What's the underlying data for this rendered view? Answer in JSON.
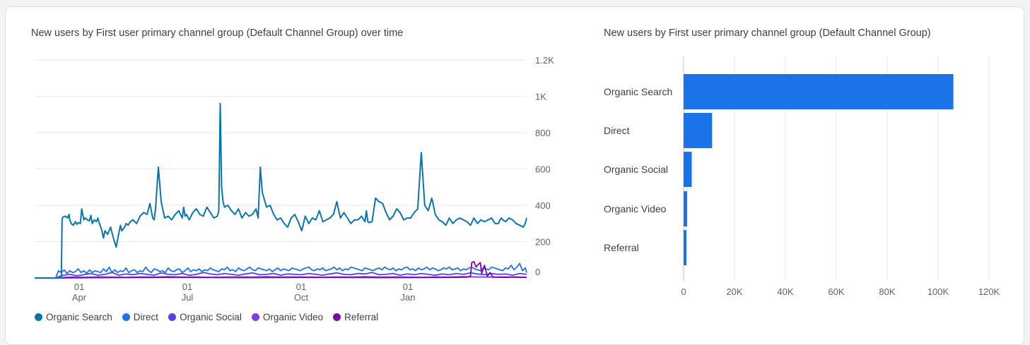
{
  "colors": {
    "organic_search": "#0a75ad",
    "direct": "#1a73e8",
    "organic_social": "#4c44e6",
    "organic_video": "#7e3ee0",
    "referral": "#7b0aa5",
    "grid": "#e8eaed",
    "axis": "#5f6368",
    "bar": "#1a73e8"
  },
  "chart_data": [
    {
      "type": "line",
      "title": "New users by First user primary channel group (Default Channel Group) over time",
      "ylim": [
        0,
        1200
      ],
      "y_ticks": [
        "1.2K",
        "1K",
        "800",
        "600",
        "400",
        "200",
        "0"
      ],
      "y_tick_values": [
        1200,
        1000,
        800,
        600,
        400,
        200,
        0
      ],
      "x_ticks": [
        {
          "top": "01",
          "bottom": "Apr"
        },
        {
          "top": "01",
          "bottom": "Jul"
        },
        {
          "top": "01",
          "bottom": "Oct"
        },
        {
          "top": "01",
          "bottom": "Jan"
        }
      ],
      "grid": true,
      "legend_position": "bottom-left",
      "legend": [
        "Organic Search",
        "Direct",
        "Organic Social",
        "Organic Video",
        "Referral"
      ],
      "series": [
        {
          "name": "Organic Search",
          "color_key": "organic_search",
          "x": [
            0,
            30,
            38,
            39,
            40,
            44,
            47,
            49,
            50,
            52,
            55,
            58,
            60,
            62,
            65,
            67,
            70,
            72,
            75,
            78,
            80,
            82,
            85,
            88,
            90,
            92,
            95,
            98,
            100,
            104,
            108,
            112,
            116,
            120,
            122,
            124,
            128,
            130,
            133,
            136,
            140,
            145,
            150,
            155,
            160,
            164,
            168,
            170,
            172,
            176,
            180,
            185,
            190,
            195,
            200,
            205,
            210,
            212,
            214,
            216,
            220,
            225,
            230,
            235,
            240,
            245,
            250,
            255,
            260,
            262,
            264,
            266,
            268,
            270,
            275,
            280,
            285,
            290,
            295,
            300,
            305,
            310,
            315,
            318,
            321,
            324,
            330,
            335,
            340,
            345,
            350,
            355,
            360,
            365,
            370,
            375,
            380,
            385,
            390,
            395,
            400,
            405,
            410,
            415,
            420,
            425,
            430,
            435,
            440,
            445,
            450,
            455,
            460,
            465,
            470,
            472,
            474,
            476,
            480,
            485,
            490,
            495,
            500,
            505,
            510,
            515,
            520,
            525,
            530,
            535,
            540,
            545,
            550,
            555,
            560,
            565,
            570,
            575,
            580,
            585,
            590,
            595,
            600,
            605,
            610,
            615,
            620,
            625,
            630,
            635,
            640,
            645,
            650,
            655,
            660,
            662,
            664,
            666,
            670,
            675,
            680,
            685,
            690,
            695,
            698,
            700
          ],
          "values": [
            0,
            0,
            0,
            320,
            335,
            340,
            330,
            350,
            320,
            300,
            290,
            310,
            295,
            305,
            300,
            380,
            320,
            330,
            320,
            315,
            345,
            300,
            320,
            310,
            330,
            300,
            270,
            220,
            260,
            240,
            280,
            220,
            170,
            250,
            290,
            260,
            280,
            300,
            290,
            310,
            320,
            300,
            340,
            360,
            350,
            410,
            330,
            320,
            380,
            610,
            420,
            330,
            340,
            320,
            350,
            370,
            330,
            390,
            340,
            350,
            320,
            360,
            380,
            350,
            340,
            390,
            360,
            330,
            340,
            370,
            960,
            500,
            420,
            390,
            400,
            370,
            350,
            380,
            330,
            360,
            340,
            350,
            380,
            330,
            610,
            470,
            390,
            400,
            350,
            320,
            330,
            300,
            280,
            330,
            350,
            310,
            260,
            340,
            300,
            330,
            320,
            370,
            310,
            320,
            330,
            350,
            420,
            330,
            360,
            330,
            300,
            320,
            320,
            340,
            310,
            370,
            310,
            305,
            310,
            440,
            420,
            410,
            360,
            320,
            340,
            380,
            360,
            320,
            330,
            330,
            360,
            380,
            690,
            400,
            370,
            440,
            350,
            320,
            310,
            290,
            330,
            300,
            320,
            330,
            320,
            310,
            290,
            330,
            300,
            320,
            310,
            320,
            330,
            300,
            300,
            320,
            330,
            320,
            310,
            330,
            320,
            300,
            290,
            280,
            300,
            330
          ],
          "_": null
        },
        {
          "name": "Direct",
          "color_key": "direct",
          "x": [
            0,
            30,
            34,
            38,
            42,
            46,
            50,
            54,
            58,
            62,
            66,
            70,
            74,
            78,
            82,
            86,
            90,
            94,
            98,
            102,
            106,
            110,
            114,
            118,
            122,
            126,
            130,
            134,
            138,
            142,
            146,
            150,
            154,
            158,
            162,
            166,
            170,
            174,
            178,
            182,
            186,
            190,
            194,
            198,
            202,
            206,
            210,
            214,
            218,
            222,
            226,
            230,
            234,
            238,
            242,
            246,
            250,
            254,
            258,
            262,
            266,
            270,
            274,
            278,
            282,
            286,
            290,
            294,
            298,
            302,
            306,
            310,
            314,
            318,
            322,
            326,
            330,
            334,
            338,
            342,
            346,
            350,
            354,
            358,
            362,
            366,
            370,
            374,
            378,
            382,
            386,
            390,
            394,
            398,
            402,
            406,
            410,
            414,
            418,
            422,
            426,
            430,
            434,
            438,
            442,
            446,
            450,
            454,
            458,
            462,
            466,
            470,
            474,
            478,
            482,
            486,
            490,
            494,
            498,
            502,
            506,
            510,
            514,
            518,
            522,
            526,
            530,
            534,
            538,
            542,
            546,
            550,
            554,
            558,
            562,
            566,
            570,
            574,
            578,
            582,
            586,
            590,
            594,
            598,
            602,
            606,
            610,
            614,
            618,
            622,
            626,
            630,
            634,
            638,
            642,
            646,
            650,
            654,
            658,
            662,
            666,
            670,
            674,
            678,
            682,
            686,
            690,
            694,
            698,
            700
          ],
          "values": [
            0,
            0,
            40,
            30,
            45,
            25,
            40,
            30,
            35,
            50,
            30,
            40,
            25,
            45,
            30,
            40,
            35,
            30,
            50,
            35,
            60,
            30,
            45,
            30,
            40,
            35,
            55,
            30,
            40,
            45,
            30,
            40,
            35,
            60,
            40,
            30,
            50,
            45,
            35,
            40,
            30,
            55,
            40,
            35,
            45,
            50,
            30,
            40,
            55,
            35,
            45,
            40,
            50,
            35,
            45,
            40,
            55,
            45,
            40,
            35,
            50,
            45,
            60,
            40,
            45,
            35,
            55,
            45,
            40,
            50,
            60,
            45,
            40,
            55,
            50,
            45,
            40,
            50,
            35,
            45,
            55,
            40,
            50,
            45,
            40,
            55,
            50,
            45,
            40,
            50,
            55,
            60,
            45,
            40,
            50,
            45,
            55,
            40,
            45,
            50,
            60,
            45,
            55,
            40,
            50,
            45,
            60,
            55,
            50,
            45,
            40,
            55,
            50,
            45,
            40,
            50,
            55,
            45,
            60,
            50,
            45,
            55,
            40,
            50,
            45,
            55,
            60,
            45,
            50,
            40,
            55,
            45,
            50,
            60,
            45,
            55,
            50,
            40,
            45,
            55,
            50,
            60,
            45,
            50,
            55,
            40,
            50,
            45,
            55,
            60,
            50,
            45,
            40,
            55,
            50,
            45,
            60,
            55,
            50,
            45,
            40,
            55,
            50,
            70,
            45,
            60,
            80,
            40,
            55,
            30
          ],
          "_": null
        },
        {
          "name": "Organic Social",
          "color_key": "organic_social",
          "x": [
            0,
            30,
            40,
            50,
            60,
            70,
            80,
            90,
            100,
            110,
            120,
            130,
            140,
            150,
            160,
            170,
            180,
            190,
            200,
            210,
            220,
            230,
            240,
            250,
            260,
            270,
            280,
            290,
            300,
            310,
            320,
            330,
            340,
            350,
            360,
            370,
            380,
            390,
            400,
            410,
            420,
            430,
            440,
            450,
            460,
            470,
            480,
            490,
            500,
            510,
            520,
            530,
            540,
            550,
            560,
            570,
            580,
            590,
            600,
            610,
            620,
            630,
            640,
            650,
            660,
            670,
            680,
            690,
            700
          ],
          "values": [
            0,
            0,
            15,
            20,
            12,
            18,
            25,
            15,
            20,
            30,
            15,
            22,
            18,
            25,
            20,
            15,
            28,
            20,
            18,
            25,
            15,
            20,
            30,
            22,
            18,
            25,
            20,
            15,
            22,
            28,
            18,
            20,
            25,
            15,
            22,
            20,
            18,
            25,
            20,
            15,
            22,
            28,
            20,
            18,
            25,
            22,
            30,
            18,
            20,
            25,
            15,
            22,
            18,
            25,
            20,
            15,
            22,
            18,
            25,
            20,
            28,
            22,
            18,
            25,
            20,
            22,
            15,
            25,
            20
          ],
          "_": null
        },
        {
          "name": "Organic Video",
          "color_key": "organic_video",
          "x": [
            0,
            30,
            50,
            70,
            90,
            110,
            130,
            150,
            170,
            190,
            210,
            230,
            250,
            270,
            290,
            310,
            330,
            350,
            370,
            390,
            410,
            430,
            450,
            470,
            490,
            510,
            530,
            550,
            570,
            590,
            610,
            630,
            650,
            670,
            690,
            700
          ],
          "values": [
            0,
            0,
            5,
            4,
            6,
            5,
            4,
            6,
            5,
            7,
            5,
            6,
            4,
            5,
            6,
            5,
            7,
            5,
            6,
            5,
            4,
            6,
            5,
            7,
            5,
            6,
            5,
            4,
            6,
            5,
            7,
            6,
            5,
            6,
            5,
            4
          ],
          "_": null
        },
        {
          "name": "Referral",
          "color_key": "referral",
          "x": [
            0,
            30,
            100,
            200,
            300,
            400,
            500,
            600,
            615,
            620,
            622,
            625,
            628,
            630,
            634,
            636,
            640,
            644,
            648,
            652,
            660,
            670,
            680,
            690,
            700
          ],
          "values": [
            0,
            0,
            2,
            3,
            2,
            3,
            2,
            3,
            5,
            10,
            85,
            90,
            60,
            70,
            85,
            25,
            70,
            10,
            30,
            5,
            4,
            3,
            5,
            3,
            4
          ],
          "_": null
        }
      ]
    },
    {
      "type": "bar",
      "orientation": "horizontal",
      "title": "New users by First user primary channel group (Default Channel Group)",
      "categories": [
        "Organic Search",
        "Direct",
        "Organic Social",
        "Organic Video",
        "Referral"
      ],
      "values": [
        106000,
        11200,
        3200,
        1400,
        1100
      ],
      "xlim": [
        0,
        120000
      ],
      "x_ticks": [
        "0",
        "20K",
        "40K",
        "60K",
        "80K",
        "100K",
        "120K"
      ],
      "x_tick_values": [
        0,
        20000,
        40000,
        60000,
        80000,
        100000,
        120000
      ],
      "grid": true
    }
  ]
}
